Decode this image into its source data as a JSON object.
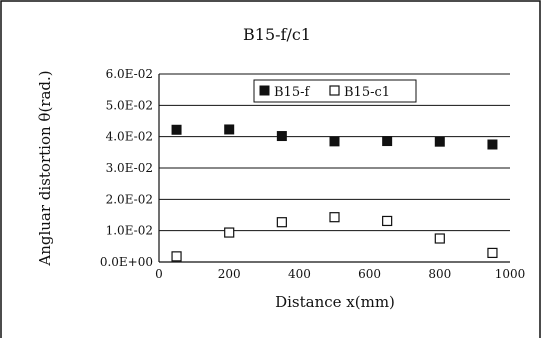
{
  "chart_data": {
    "type": "scatter",
    "title": "B15-f/c1",
    "xlabel": "Distance x(mm)",
    "ylabel": "Angluar distortion θ(rad.)",
    "xlim": [
      0,
      1000
    ],
    "ylim": [
      0,
      0.06
    ],
    "x_ticks": [
      "0",
      "200",
      "400",
      "600",
      "800",
      "1000"
    ],
    "y_ticks": [
      "0.0E+00",
      "1.0E-02",
      "2.0E-02",
      "3.0E-02",
      "4.0E-02",
      "5.0E-02",
      "6.0E-02"
    ],
    "grid": "horizontal",
    "legend_position": "top-center",
    "series": [
      {
        "name": "B15-f",
        "marker": "filled-square",
        "color": "#111111",
        "points": [
          {
            "x": 50,
            "y": 0.0422
          },
          {
            "x": 200,
            "y": 0.0423
          },
          {
            "x": 350,
            "y": 0.0402
          },
          {
            "x": 500,
            "y": 0.0385
          },
          {
            "x": 650,
            "y": 0.0386
          },
          {
            "x": 800,
            "y": 0.0384
          },
          {
            "x": 950,
            "y": 0.0375
          }
        ]
      },
      {
        "name": "B15-c1",
        "marker": "open-square",
        "color": "#111111",
        "points": [
          {
            "x": 50,
            "y": 0.0018
          },
          {
            "x": 200,
            "y": 0.0094
          },
          {
            "x": 350,
            "y": 0.0127
          },
          {
            "x": 500,
            "y": 0.0143
          },
          {
            "x": 650,
            "y": 0.0131
          },
          {
            "x": 800,
            "y": 0.0075
          },
          {
            "x": 950,
            "y": 0.0029
          }
        ]
      }
    ]
  }
}
